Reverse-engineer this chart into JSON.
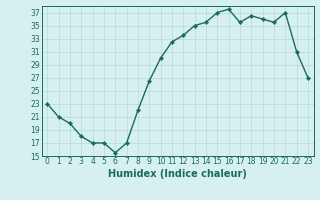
{
  "x": [
    0,
    1,
    2,
    3,
    4,
    5,
    6,
    7,
    8,
    9,
    10,
    11,
    12,
    13,
    14,
    15,
    16,
    17,
    18,
    19,
    20,
    21,
    22,
    23
  ],
  "y": [
    23,
    21,
    20,
    18,
    17,
    17,
    15.5,
    17,
    22,
    26.5,
    30,
    32.5,
    33.5,
    35,
    35.5,
    37,
    37.5,
    35.5,
    36.5,
    36,
    35.5,
    37,
    31,
    27
  ],
  "line_color": "#1a6b5a",
  "marker": "D",
  "marker_size": 2.2,
  "bg_color": "#d6f0f0",
  "grid_color": "#b8d8d8",
  "xlabel": "Humidex (Indice chaleur)",
  "xlim": [
    -0.5,
    23.5
  ],
  "ylim": [
    15,
    38
  ],
  "yticks": [
    15,
    17,
    19,
    21,
    23,
    25,
    27,
    29,
    31,
    33,
    35,
    37
  ],
  "xticks": [
    0,
    1,
    2,
    3,
    4,
    5,
    6,
    7,
    8,
    9,
    10,
    11,
    12,
    13,
    14,
    15,
    16,
    17,
    18,
    19,
    20,
    21,
    22,
    23
  ],
  "tick_fontsize": 5.5,
  "xlabel_fontsize": 7,
  "line_width": 1.0
}
